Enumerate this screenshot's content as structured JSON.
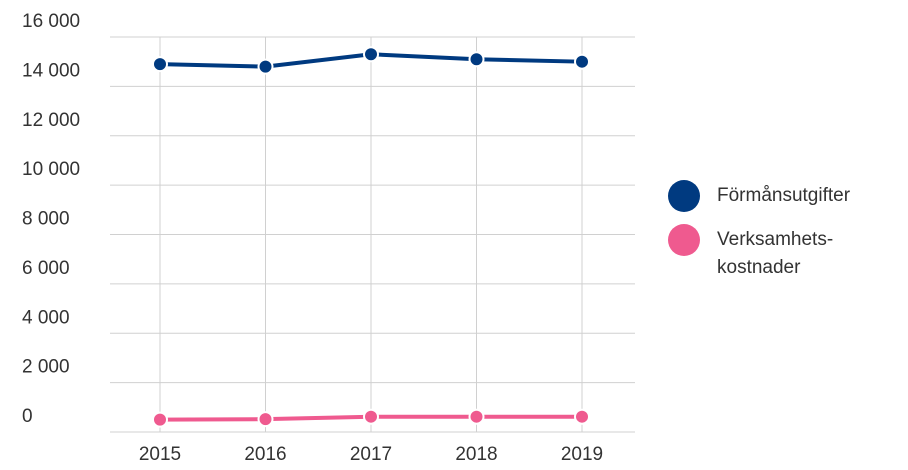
{
  "chart_data": {
    "type": "line",
    "x": [
      "2015",
      "2016",
      "2017",
      "2018",
      "2019"
    ],
    "series": [
      {
        "name": "Förmånsutgifter",
        "color": "#003a80",
        "values": [
          14900,
          14800,
          15300,
          15100,
          15000
        ]
      },
      {
        "name": "Verksamhets-kostnader",
        "color": "#ef5a8f",
        "values": [
          500,
          520,
          620,
          620,
          620
        ]
      }
    ],
    "ylim": [
      0,
      16000
    ],
    "yticks": [
      0,
      {
        "value": 2000,
        "label": "2 000"
      },
      {
        "value": 4000,
        "label": "4 000"
      },
      {
        "value": 6000,
        "label": "6 000"
      },
      {
        "value": 8000,
        "label": "8 000"
      },
      {
        "value": 10000,
        "label": "10 000"
      },
      {
        "value": 12000,
        "label": "12 000"
      },
      {
        "value": 14000,
        "label": "14 000"
      },
      {
        "value": 16000,
        "label": "16 000"
      }
    ],
    "grid": true,
    "legend": "right"
  }
}
